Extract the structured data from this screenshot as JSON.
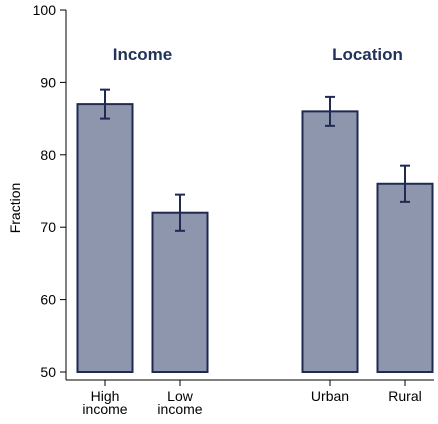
{
  "chart_data": {
    "type": "bar",
    "categories": [
      [
        "High",
        "income"
      ],
      [
        "Low",
        "income"
      ],
      [
        "Urban"
      ],
      [
        "Rural"
      ]
    ],
    "values": [
      87,
      72,
      86,
      76
    ],
    "error_low": [
      85,
      69.5,
      84,
      73.5
    ],
    "error_high": [
      89,
      74.5,
      88,
      78.5
    ],
    "groups": [
      {
        "label": "Income",
        "members": [
          0,
          1
        ]
      },
      {
        "label": "Location",
        "members": [
          2,
          3
        ]
      }
    ],
    "title": "",
    "xlabel": "",
    "ylabel": "Fraction",
    "ylim": [
      50,
      100
    ],
    "yticks": [
      50,
      60,
      70,
      80,
      90,
      100
    ],
    "grid": false,
    "legend": "none",
    "colors": {
      "bar_fill": "#8e96ad",
      "bar_stroke": "#1e2a52",
      "error_bar": "#1e2a52",
      "group_label": "#22335a",
      "axis": "#000000"
    }
  }
}
